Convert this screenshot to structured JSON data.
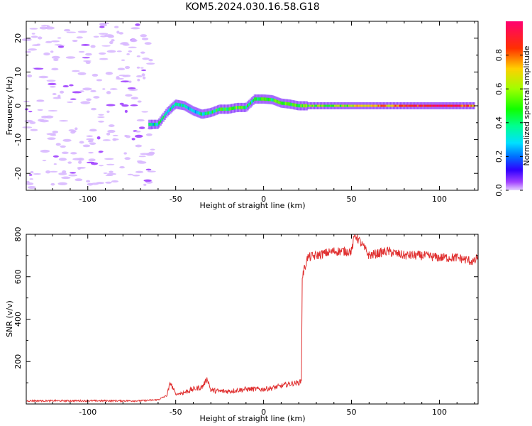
{
  "title": "KOM5.2024.030.16.58.G18",
  "chart_data": [
    {
      "type": "heatmap",
      "xlabel": "Height of straight line (km)",
      "ylabel": "Frequency (Hz)",
      "xlim": [
        -135,
        122
      ],
      "ylim": [
        -25,
        25
      ],
      "xticks": [
        -100,
        -50,
        0,
        50,
        100
      ],
      "yticks": [
        -20,
        -10,
        0,
        10,
        20
      ],
      "colorbar": {
        "label": "Normalized spectral amplitude",
        "range": [
          0,
          1
        ],
        "ticks": [
          "0.0",
          "0.2",
          "0.4",
          "0.6",
          "0.8"
        ],
        "colormap": "gist_rainbow_r"
      },
      "ridge": {
        "x": [
          -65,
          -60,
          -55,
          -50,
          -45,
          -40,
          -35,
          -30,
          -25,
          -20,
          -15,
          -10,
          -5,
          0,
          5,
          10,
          15,
          20,
          25,
          30,
          40,
          50,
          60,
          70,
          80,
          90,
          100,
          110,
          120
        ],
        "y": [
          -5.5,
          -5.5,
          -2,
          0.5,
          0,
          -1.5,
          -2.5,
          -2,
          -1,
          -1,
          -0.5,
          -0.5,
          2,
          2,
          1.8,
          0.8,
          0.5,
          0,
          0,
          0,
          0,
          0,
          0,
          0,
          0,
          0,
          0,
          0,
          0
        ],
        "amplitude": [
          0.3,
          0.35,
          0.3,
          0.4,
          0.35,
          0.3,
          0.35,
          0.4,
          0.45,
          0.5,
          0.5,
          0.45,
          0.4,
          0.45,
          0.5,
          0.5,
          0.45,
          0.5,
          0.55,
          0.55,
          0.55,
          0.6,
          0.7,
          0.75,
          0.85,
          0.9,
          0.95,
          0.95,
          0.7
        ]
      },
      "noise_region_x": [
        -135,
        -63
      ]
    },
    {
      "type": "line",
      "xlabel": "Height of straight line (km)",
      "ylabel": "SNR (v/v)",
      "xlim": [
        -135,
        122
      ],
      "ylim": [
        0,
        800
      ],
      "xticks": [
        -100,
        -50,
        0,
        50,
        100
      ],
      "yticks": [
        200,
        400,
        600,
        800
      ],
      "color": "#e03030",
      "series": [
        {
          "x": [
            -135,
            -120,
            -100,
            -80,
            -70,
            -60,
            -55,
            -53,
            -50,
            -45,
            -40,
            -35,
            -32,
            -30,
            -25,
            -20,
            -10,
            0,
            5,
            10,
            15,
            20,
            21.5,
            22,
            25,
            30,
            40,
            50,
            52,
            60,
            70,
            80,
            90,
            100,
            110,
            115,
            120,
            122
          ],
          "y": [
            15,
            15,
            15,
            15,
            15,
            20,
            40,
            100,
            45,
            55,
            70,
            80,
            120,
            65,
            60,
            60,
            70,
            70,
            75,
            85,
            95,
            100,
            110,
            600,
            690,
            700,
            720,
            720,
            800,
            700,
            720,
            700,
            700,
            690,
            690,
            680,
            670,
            700
          ]
        }
      ]
    }
  ]
}
